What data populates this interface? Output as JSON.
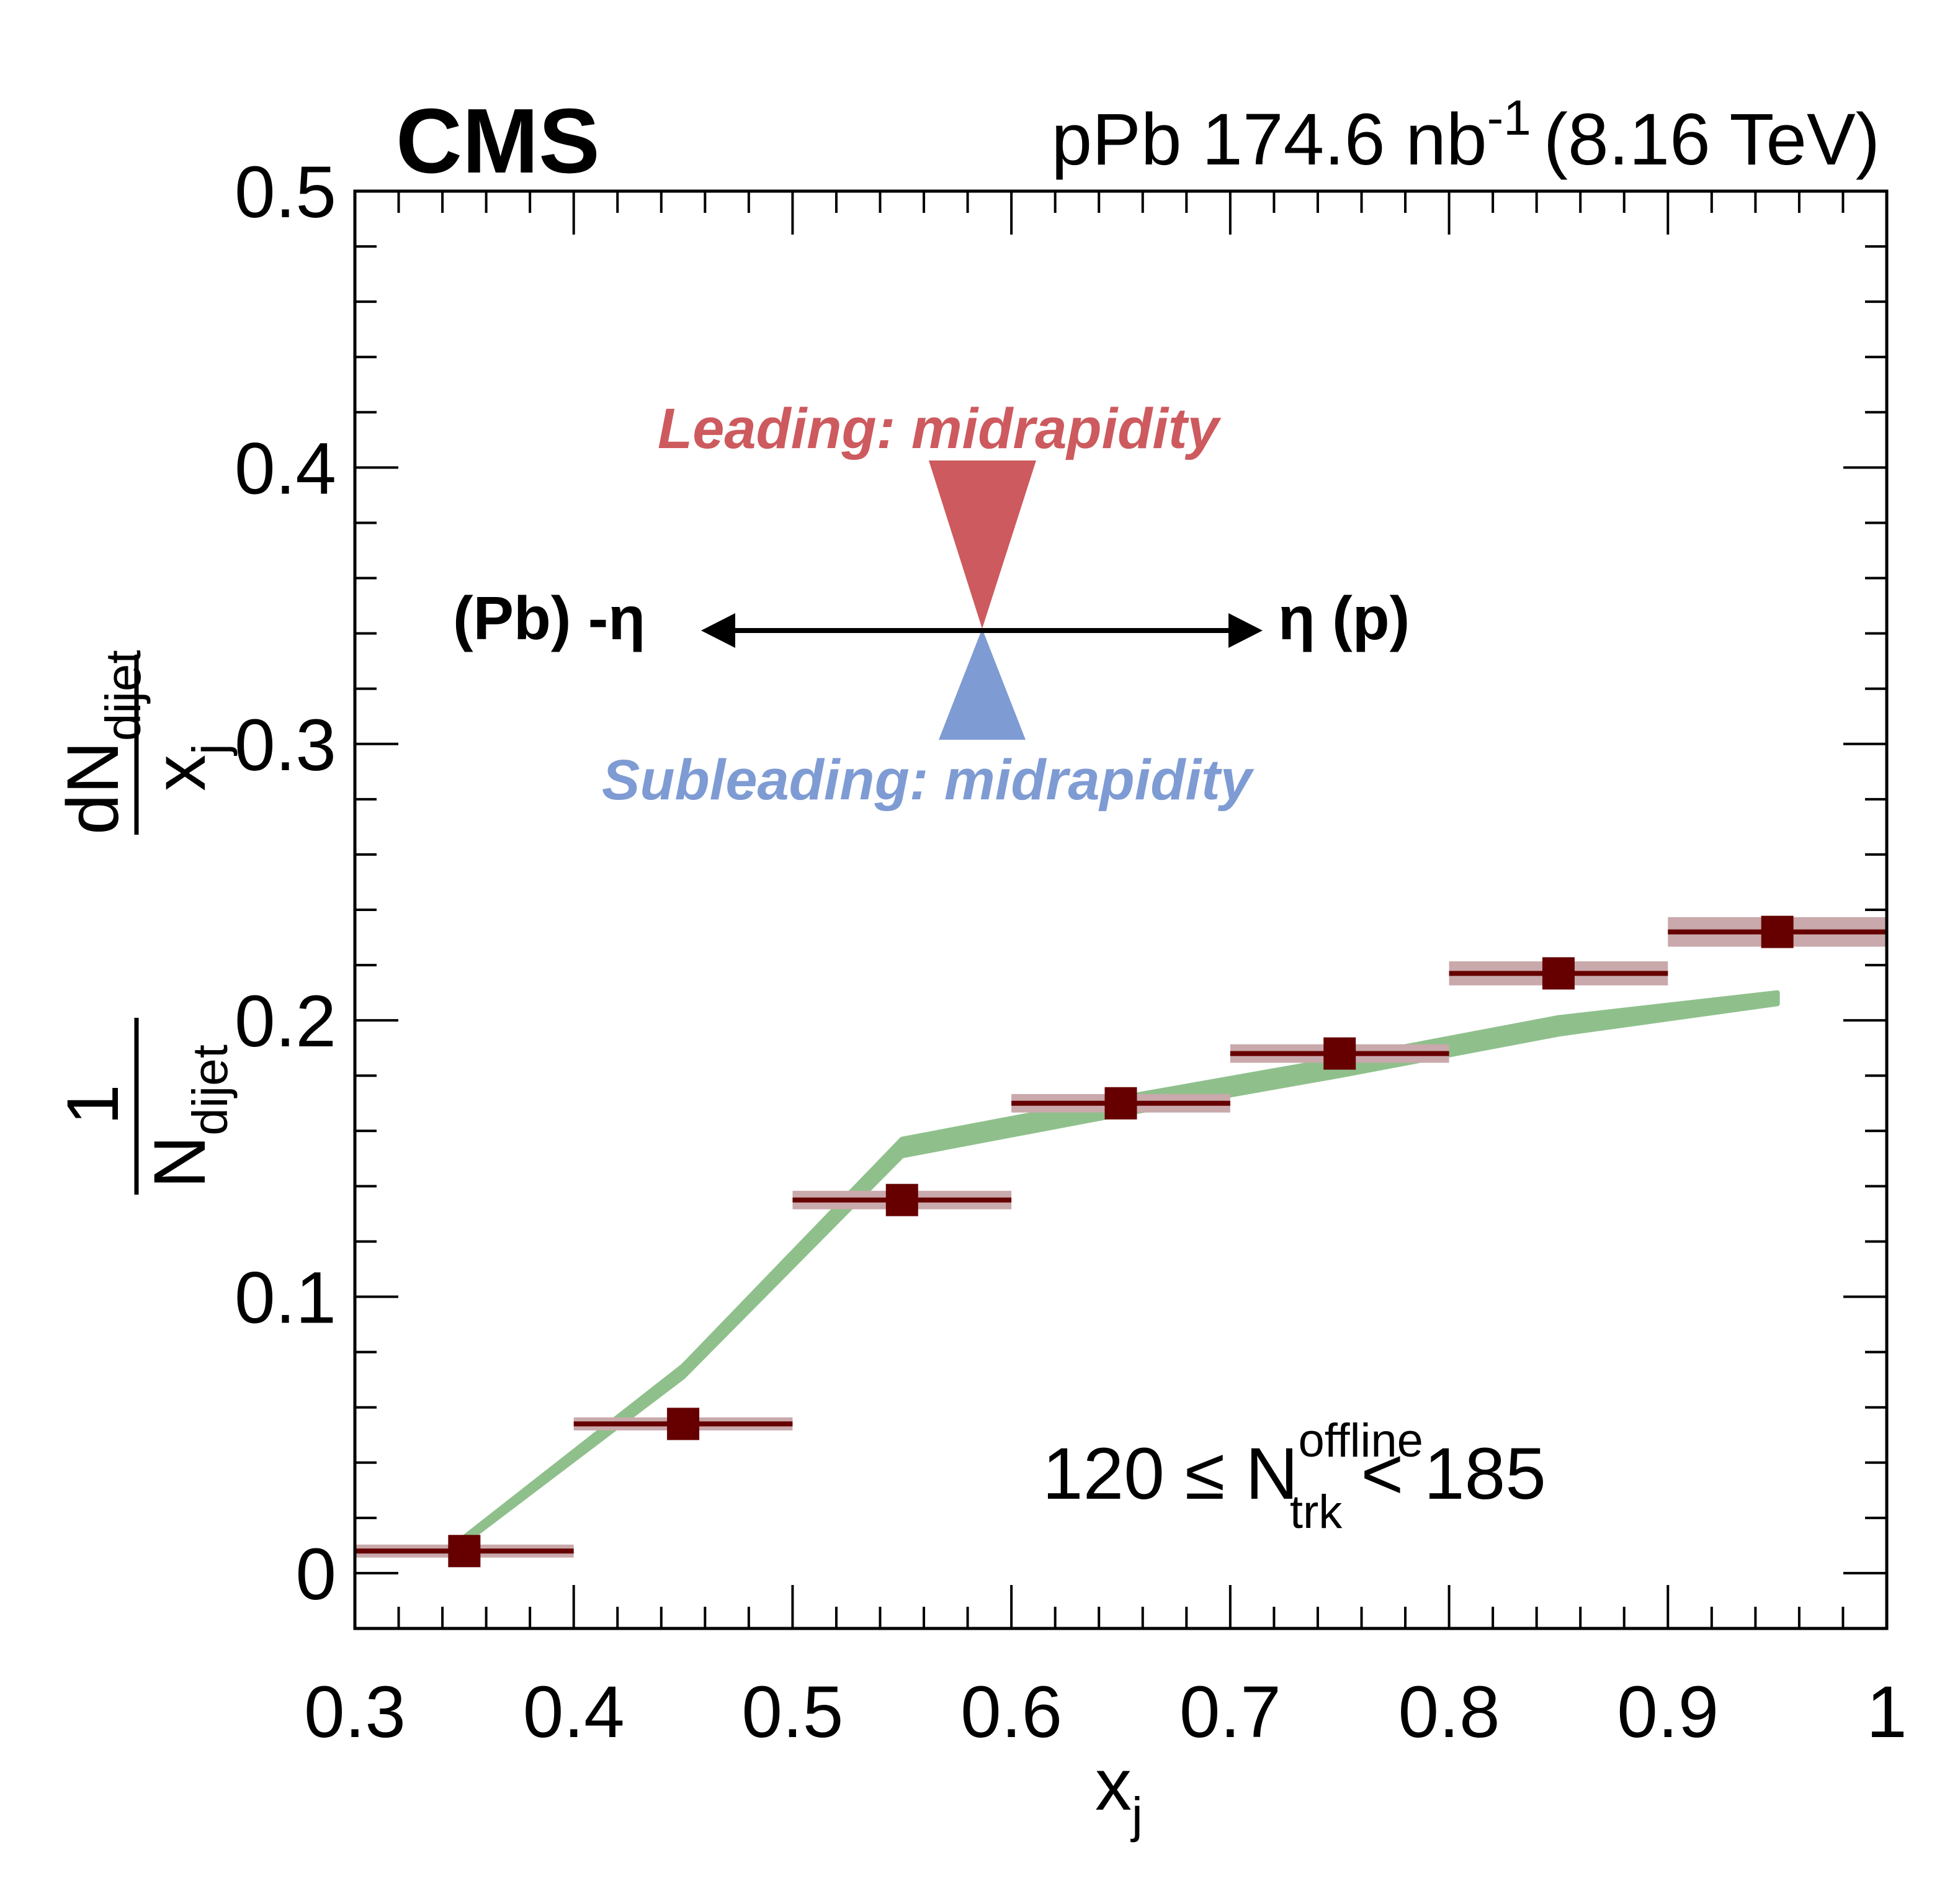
{
  "header": {
    "experiment": "CMS",
    "collision": "pPb 174.6 nb",
    "lumi_exp": "-1",
    "energy": "(8.16 TeV)"
  },
  "annotations": {
    "leading": "Leading: midrapidity",
    "subleading": "Subleading: midrapidity",
    "left_dir": "(Pb) -η",
    "right_dir": "η (p)",
    "range_prefix": "120 ≤ N",
    "range_sup": "offline",
    "range_sub": "trk",
    "range_suffix": "< 185"
  },
  "colors": {
    "data": "#660000",
    "syst_band": "#c9a9ab",
    "model": "#8fc08c",
    "leading": "#cd5a5e",
    "subleading": "#7e9bd3"
  },
  "chart_data": {
    "type": "scatter",
    "title": "",
    "xlabel": "x",
    "xlabel_sub": "j",
    "ylabel": "1/N_dijet dN_dijet/x_j",
    "xlim": [
      0.3,
      1.0
    ],
    "ylim": [
      -0.02,
      0.5
    ],
    "xticks": [
      "0.3",
      "0.4",
      "0.5",
      "0.6",
      "0.7",
      "0.8",
      "0.9",
      "1"
    ],
    "yticks": [
      "0",
      "0.1",
      "0.2",
      "0.3",
      "0.4",
      "0.5"
    ],
    "grid": false,
    "series": [
      {
        "kind": "data",
        "x": [
          0.35,
          0.45,
          0.55,
          0.65,
          0.75,
          0.85,
          0.95
        ],
        "xerr": 0.05,
        "y": [
          0.008,
          0.054,
          0.135,
          0.17,
          0.188,
          0.217,
          0.232
        ],
        "syst": [
          0.001,
          0.001,
          0.002,
          0.002,
          0.002,
          0.003,
          0.004
        ]
      },
      {
        "kind": "model",
        "x": [
          0.35,
          0.45,
          0.55,
          0.65,
          0.75,
          0.85,
          0.95
        ],
        "y": [
          0.012,
          0.073,
          0.154,
          0.169,
          0.183,
          0.198,
          0.208
        ],
        "width": [
          0.001,
          0.002,
          0.003,
          0.003,
          0.003,
          0.003,
          0.002
        ]
      }
    ]
  }
}
